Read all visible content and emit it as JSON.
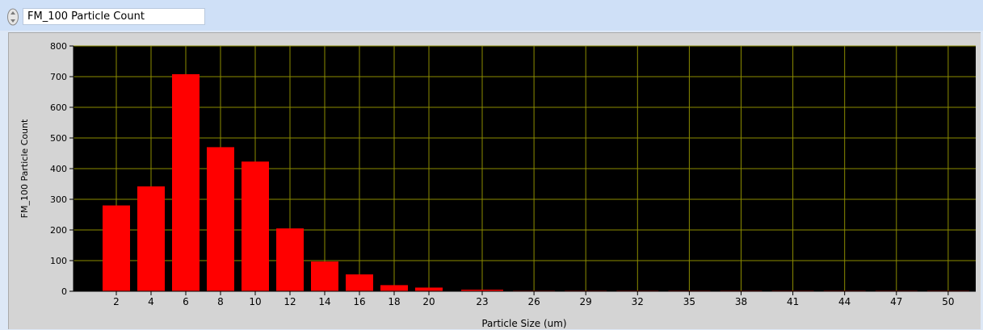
{
  "header": {
    "title": "FM_100 Particle Count"
  },
  "colors": {
    "plot_bg": "#000000",
    "bar": "#ff0000",
    "grid": "#8c8c00",
    "panel": "#d4d4d4",
    "topbar": "#cfe0f7"
  },
  "chart_data": {
    "type": "bar",
    "title": "",
    "xlabel": "Particle Size (um)",
    "ylabel": "FM_100 Particle Count",
    "ylim": [
      0,
      800
    ],
    "yticks": [
      0,
      100,
      200,
      300,
      400,
      500,
      600,
      700,
      800
    ],
    "grid": true,
    "categories": [
      "2",
      "4",
      "6",
      "8",
      "10",
      "12",
      "14",
      "16",
      "18",
      "20",
      "23",
      "26",
      "29",
      "32",
      "35",
      "38",
      "41",
      "44",
      "47",
      "50"
    ],
    "values": [
      280,
      342,
      708,
      470,
      423,
      205,
      97,
      55,
      20,
      12,
      5,
      2,
      2,
      2,
      2,
      2,
      2,
      2,
      2,
      2
    ]
  }
}
